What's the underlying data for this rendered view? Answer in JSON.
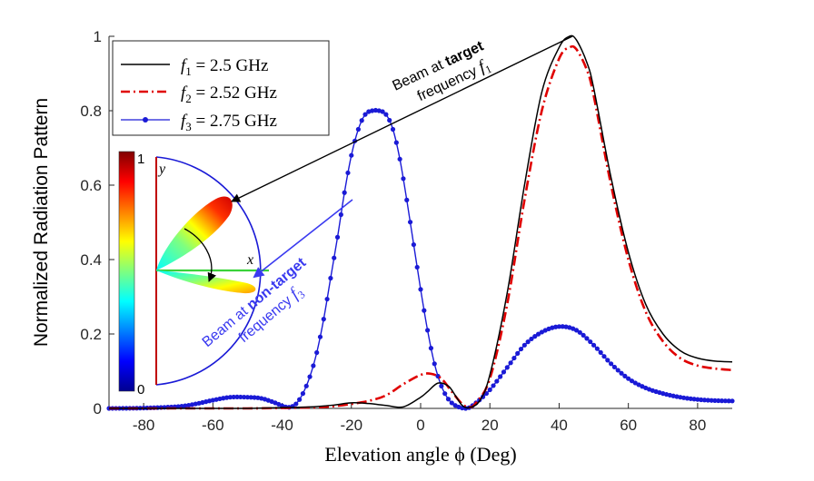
{
  "chart_data": {
    "type": "line",
    "title": "",
    "xlabel": "Elevation angle ϕ (Deg)",
    "ylabel": "Normalized Radiation Pattern",
    "xlim": [
      -90,
      90
    ],
    "ylim": [
      0,
      1
    ],
    "xticks": [
      -80,
      -60,
      -40,
      -20,
      0,
      20,
      40,
      60,
      80
    ],
    "xtick_labels": [
      "-80",
      "-60",
      "-40",
      "-20",
      "0",
      "20",
      "40",
      "60",
      "80"
    ],
    "yticks": [
      0,
      0.2,
      0.4,
      0.6,
      0.8,
      1
    ],
    "ytick_labels": [
      "0",
      "0.2",
      "0.4",
      "0.6",
      "0.8",
      "1"
    ],
    "grid": false,
    "legend_position": "top-left",
    "series": [
      {
        "name": "f1 = 2.5 GHz",
        "legend_main": "f",
        "legend_sub": "1",
        "legend_rest": " = 2.5 GHz",
        "color": "#000000",
        "style": "solid",
        "x": [
          -90,
          -70,
          -60,
          -50,
          -40,
          -35,
          -30,
          -25,
          -20,
          -15,
          -10,
          -5,
          0,
          2,
          5,
          8,
          10,
          12,
          14,
          17,
          20,
          25,
          30,
          35,
          40,
          43,
          45,
          48,
          50,
          55,
          60,
          65,
          70,
          75,
          80,
          85,
          90
        ],
        "y": [
          0,
          0,
          0,
          0,
          0.002,
          0.003,
          0.005,
          0.009,
          0.015,
          0.013,
          0.008,
          0.004,
          0.03,
          0.045,
          0.068,
          0.06,
          0.035,
          0.008,
          0.002,
          0.02,
          0.09,
          0.31,
          0.6,
          0.85,
          0.97,
          1.0,
          0.99,
          0.93,
          0.86,
          0.62,
          0.42,
          0.28,
          0.2,
          0.155,
          0.135,
          0.127,
          0.125
        ]
      },
      {
        "name": "f2 = 2.52 GHz",
        "legend_main": "f",
        "legend_sub": "2",
        "legend_rest": " = 2.52 GHz",
        "color": "#e00000",
        "style": "dashdot",
        "x": [
          -90,
          -70,
          -60,
          -50,
          -40,
          -30,
          -25,
          -20,
          -15,
          -10,
          -5,
          0,
          3,
          6,
          9,
          12,
          14,
          16,
          20,
          25,
          30,
          35,
          40,
          43,
          45,
          48,
          50,
          55,
          60,
          65,
          70,
          75,
          80,
          85,
          90
        ],
        "y": [
          0,
          0,
          0,
          0,
          0.001,
          0.003,
          0.006,
          0.012,
          0.02,
          0.035,
          0.065,
          0.09,
          0.093,
          0.08,
          0.045,
          0.012,
          0.003,
          0.015,
          0.08,
          0.28,
          0.56,
          0.8,
          0.94,
          0.97,
          0.965,
          0.91,
          0.84,
          0.6,
          0.4,
          0.26,
          0.18,
          0.135,
          0.115,
          0.107,
          0.103
        ]
      },
      {
        "name": "f3 = 2.75 GHz",
        "legend_main": "f",
        "legend_sub": "3",
        "legend_rest": " = 2.75 GHz",
        "color": "#1a1ad6",
        "style": "dotted-line",
        "x": [
          -90,
          -80,
          -70,
          -65,
          -60,
          -55,
          -50,
          -46,
          -42,
          -40,
          -38,
          -36,
          -34,
          -32,
          -30,
          -28,
          -26,
          -24,
          -22,
          -20,
          -18,
          -16,
          -14,
          -12,
          -10,
          -8,
          -6,
          -4,
          -2,
          0,
          2,
          4,
          6,
          8,
          10,
          12,
          13,
          14,
          16,
          20,
          25,
          30,
          35,
          40,
          45,
          50,
          55,
          60,
          65,
          70,
          75,
          80,
          85,
          90
        ],
        "y": [
          0,
          0.001,
          0.005,
          0.012,
          0.022,
          0.03,
          0.03,
          0.027,
          0.015,
          0.007,
          0.003,
          0.012,
          0.04,
          0.085,
          0.15,
          0.24,
          0.35,
          0.46,
          0.58,
          0.68,
          0.75,
          0.79,
          0.8,
          0.8,
          0.79,
          0.75,
          0.67,
          0.56,
          0.44,
          0.32,
          0.21,
          0.12,
          0.06,
          0.025,
          0.008,
          0.001,
          0.0,
          0.002,
          0.015,
          0.05,
          0.11,
          0.17,
          0.205,
          0.22,
          0.21,
          0.17,
          0.12,
          0.08,
          0.055,
          0.04,
          0.03,
          0.024,
          0.021,
          0.02
        ]
      }
    ],
    "annotations": {
      "target_prefix": "Beam at ",
      "target_bold": "target",
      "target_line2": "frequency ",
      "target_var": "f",
      "target_sub": "1",
      "nontarget_prefix": "Beam at ",
      "nontarget_bold": "non-target",
      "nontarget_line2": "frequency ",
      "nontarget_var": "f",
      "nontarget_sub": "3"
    },
    "inset": {
      "colorbar_max": "1",
      "colorbar_min": "0",
      "x_label": "x",
      "y_label": "y"
    }
  }
}
